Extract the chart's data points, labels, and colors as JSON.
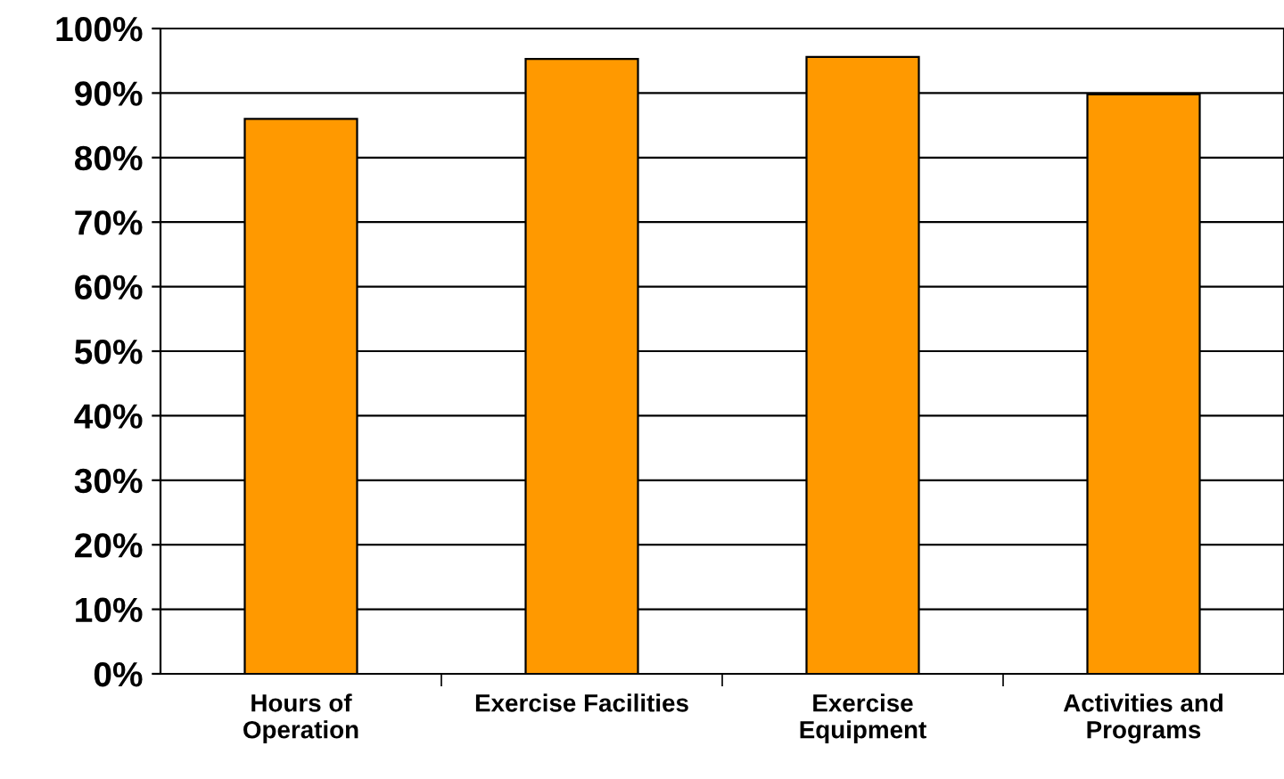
{
  "chart_data": {
    "type": "bar",
    "categories": [
      "Hours of\nOperation",
      "Exercise Facilities",
      "Exercise\nEquipment",
      "Activities and\nPrograms"
    ],
    "values": [
      86,
      95.3,
      95.6,
      89.8
    ],
    "color": "#ff9900",
    "ylim": [
      0,
      100
    ],
    "yticks": [
      {
        "value": 0,
        "label": "0%"
      },
      {
        "value": 10,
        "label": "10%"
      },
      {
        "value": 20,
        "label": "20%"
      },
      {
        "value": 30,
        "label": "30%"
      },
      {
        "value": 40,
        "label": "40%"
      },
      {
        "value": 50,
        "label": "50%"
      },
      {
        "value": 60,
        "label": "60%"
      },
      {
        "value": 70,
        "label": "70%"
      },
      {
        "value": 80,
        "label": "80%"
      },
      {
        "value": 90,
        "label": "90%"
      },
      {
        "value": 100,
        "label": "100%"
      }
    ],
    "grid": "y",
    "legend": false
  }
}
